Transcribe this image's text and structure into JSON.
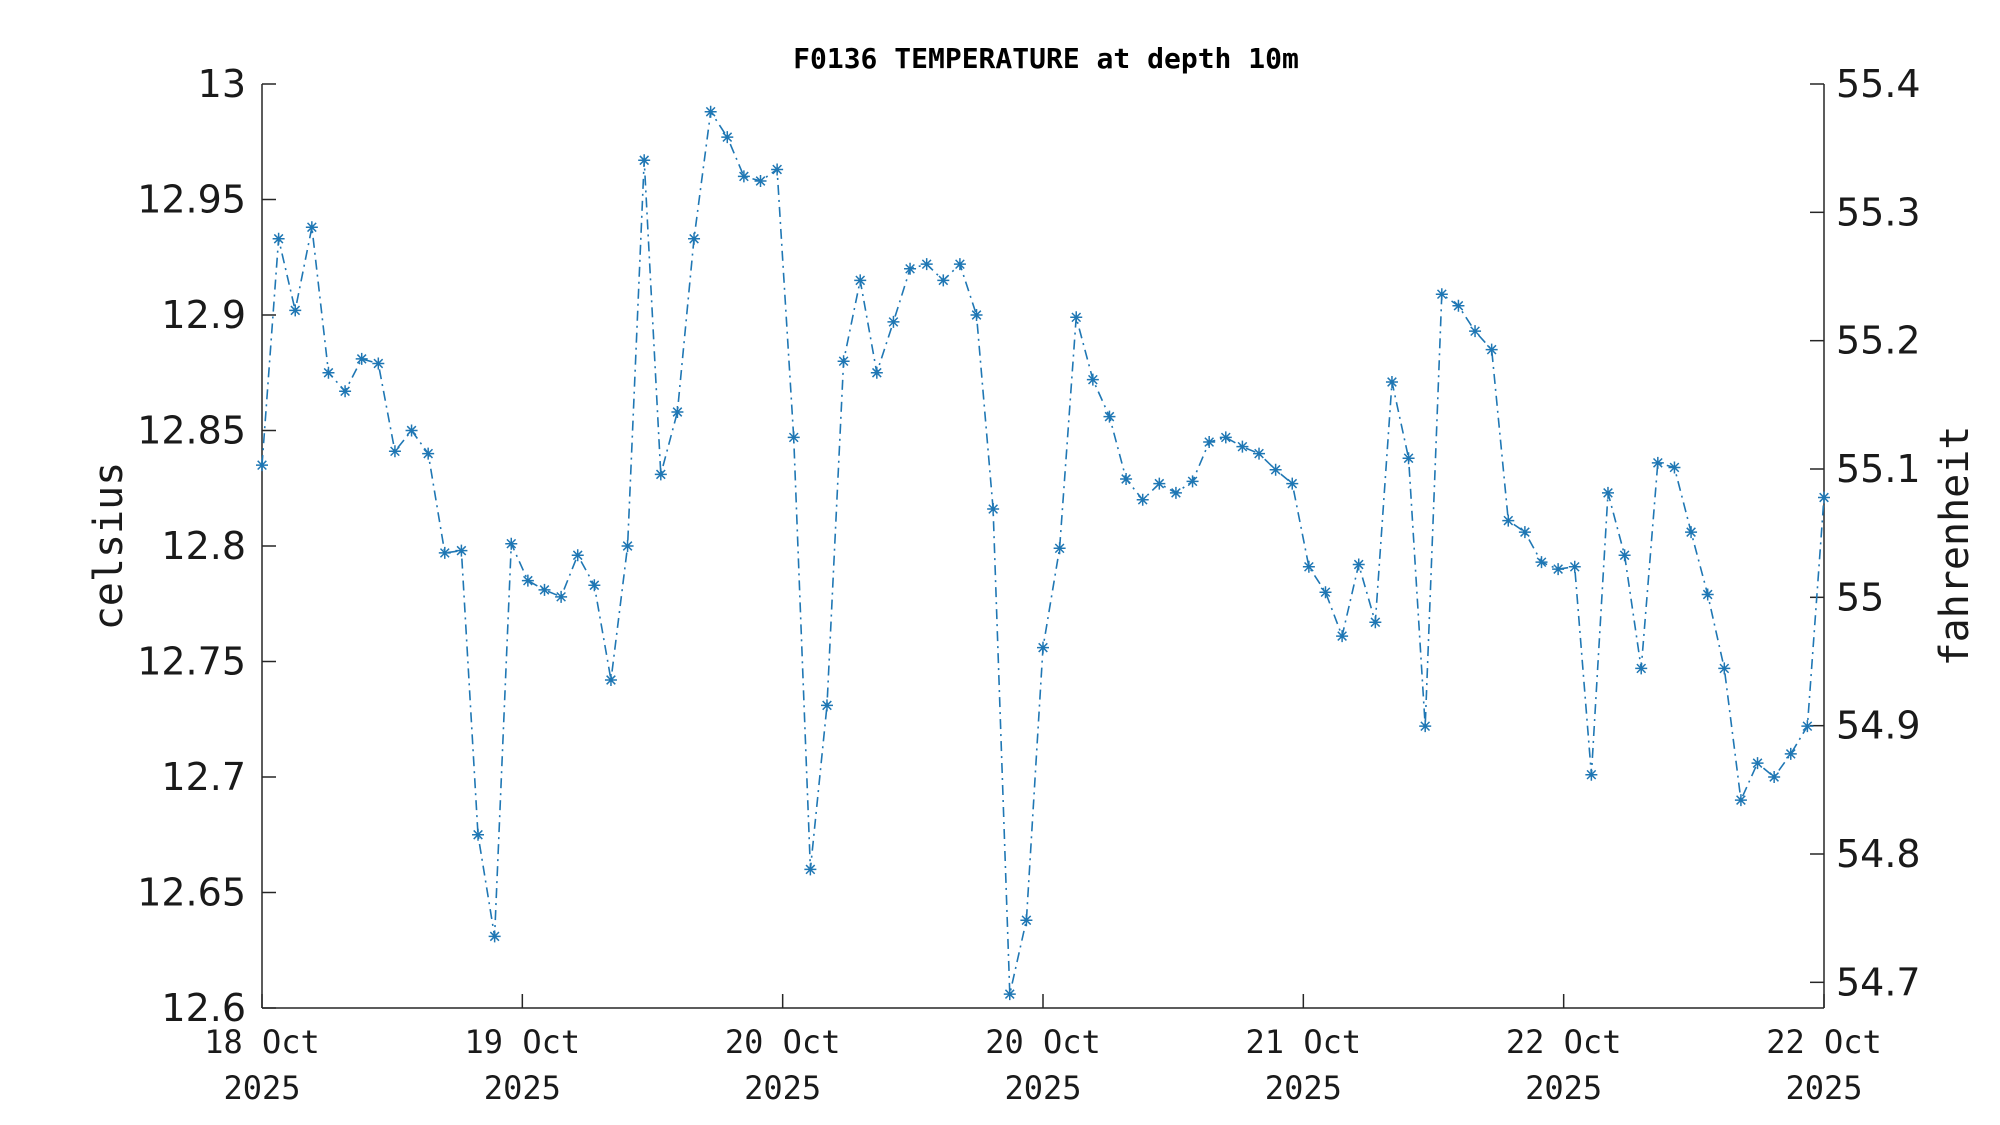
{
  "chart_data": {
    "type": "line",
    "title": "F0136 TEMPERATURE at depth 10m",
    "ylabel": "celsius",
    "y2label": "fahrenheit",
    "xlabel": "",
    "line_color": "#1f77b4",
    "line_style": "dash-dot",
    "marker": "asterisk",
    "ylim": [
      12.6,
      13.0
    ],
    "y2lim": [
      54.68,
      55.4
    ],
    "yticks": [
      12.6,
      12.65,
      12.7,
      12.75,
      12.8,
      12.85,
      12.9,
      12.95,
      13.0
    ],
    "ytick_labels": [
      "12.6",
      "12.65",
      "12.7",
      "12.75",
      "12.8",
      "12.85",
      "12.9",
      "12.95",
      "13"
    ],
    "y2ticks": [
      54.7,
      54.8,
      54.9,
      55.0,
      55.1,
      55.2,
      55.3,
      55.4
    ],
    "y2tick_labels": [
      "54.7",
      "54.8",
      "54.9",
      "55",
      "55.1",
      "55.2",
      "55.3",
      "55.4"
    ],
    "xticks": [
      {
        "line1": "18 Oct",
        "line2": "2025"
      },
      {
        "line1": "19 Oct",
        "line2": "2025"
      },
      {
        "line1": "20 Oct",
        "line2": "2025"
      },
      {
        "line1": "20 Oct",
        "line2": "2025"
      },
      {
        "line1": "21 Oct",
        "line2": "2025"
      },
      {
        "line1": "22 Oct",
        "line2": "2025"
      },
      {
        "line1": "22 Oct",
        "line2": "2025"
      }
    ],
    "series": [
      {
        "values": [
          12.835,
          12.933,
          12.902,
          12.938,
          12.875,
          12.867,
          12.881,
          12.879,
          12.841,
          12.85,
          12.84,
          12.797,
          12.798,
          12.675,
          12.631,
          12.801,
          12.785,
          12.781,
          12.778,
          12.796,
          12.783,
          12.742,
          12.8,
          12.967,
          12.831,
          12.858,
          12.933,
          12.988,
          12.977,
          12.96,
          12.958,
          12.963,
          12.847,
          12.66,
          12.731,
          12.88,
          12.915,
          12.875,
          12.897,
          12.92,
          12.922,
          12.915,
          12.922,
          12.9,
          12.816,
          12.606,
          12.638,
          12.756,
          12.799,
          12.899,
          12.872,
          12.856,
          12.829,
          12.82,
          12.827,
          12.823,
          12.828,
          12.845,
          12.847,
          12.843,
          12.84,
          12.833,
          12.827,
          12.791,
          12.78,
          12.761,
          12.792,
          12.767,
          12.871,
          12.838,
          12.722,
          12.909,
          12.904,
          12.893,
          12.885,
          12.811,
          12.806,
          12.793,
          12.79,
          12.791,
          12.701,
          12.823,
          12.796,
          12.747,
          12.836,
          12.834,
          12.806,
          12.779,
          12.747,
          12.69,
          12.706,
          12.7,
          12.71,
          12.722,
          12.821
        ]
      }
    ]
  }
}
